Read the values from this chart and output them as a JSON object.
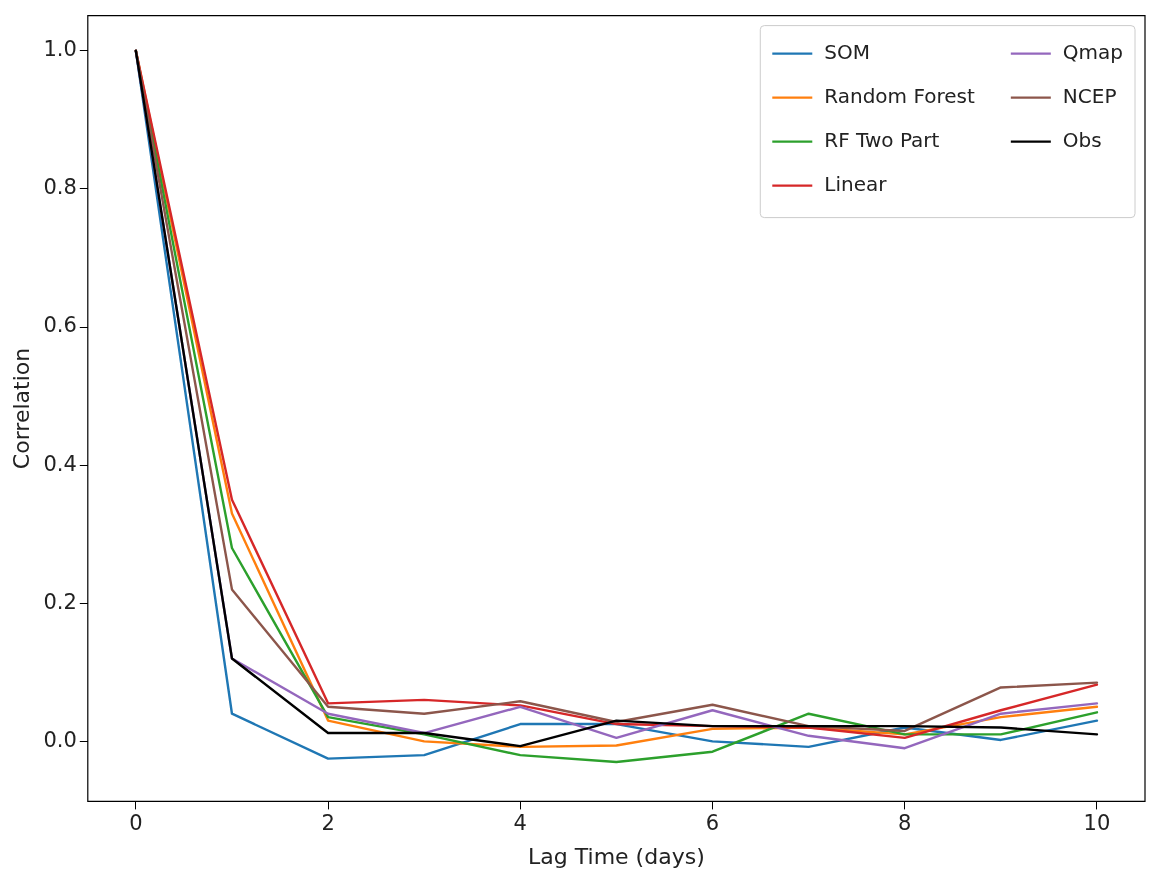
{
  "chart_data": {
    "type": "line",
    "xlabel": "Lag Time (days)",
    "ylabel": "Correlation",
    "x": [
      0,
      1,
      2,
      3,
      4,
      5,
      6,
      7,
      8,
      9,
      10
    ],
    "xlim": [
      -0.5,
      10.5
    ],
    "xticks": [
      0,
      2,
      4,
      6,
      8,
      10
    ],
    "ylim": [
      -0.087,
      1.051
    ],
    "yticks": [
      {
        "value": 0,
        "label": "0.0"
      },
      0.2,
      0.4,
      0.6,
      0.8,
      {
        "value": 1,
        "label": "1.0"
      }
    ],
    "grid": false,
    "legend": "top right",
    "marker": "none",
    "line_style": "solid",
    "series": [
      {
        "name": "SOM",
        "color": "#1f77b4",
        "values": [
          1,
          0.04,
          -0.025,
          -0.02,
          0.025,
          0.025,
          0.0,
          -0.008,
          0.02,
          0.002,
          0.03
        ]
      },
      {
        "name": "Random Forest",
        "color": "#ff7f0e",
        "values": [
          1,
          0.33,
          0.03,
          0.0,
          -0.008,
          -0.006,
          0.018,
          0.02,
          0.01,
          0.035,
          0.05
        ]
      },
      {
        "name": "RF Two Part",
        "color": "#2ca02c",
        "values": [
          1,
          0.28,
          0.035,
          0.01,
          -0.02,
          -0.03,
          -0.015,
          0.04,
          0.01,
          0.01,
          0.042
        ]
      },
      {
        "name": "Linear",
        "color": "#d62728",
        "values": [
          1,
          0.35,
          0.055,
          0.06,
          0.052,
          0.025,
          0.022,
          0.02,
          0.005,
          0.045,
          0.082
        ]
      },
      {
        "name": "Qmap",
        "color": "#9467bd",
        "values": [
          1,
          0.12,
          0.04,
          0.012,
          0.05,
          0.005,
          0.045,
          0.008,
          -0.01,
          0.04,
          0.055
        ]
      },
      {
        "name": "NCEP",
        "color": "#8c564b",
        "values": [
          1,
          0.22,
          0.05,
          0.04,
          0.058,
          0.028,
          0.053,
          0.022,
          0.015,
          0.078,
          0.085
        ]
      },
      {
        "name": "Obs",
        "color": "#000000",
        "values": [
          1,
          0.12,
          0.012,
          0.012,
          -0.007,
          0.03,
          0.022,
          0.022,
          0.022,
          0.02,
          0.01
        ]
      }
    ]
  }
}
